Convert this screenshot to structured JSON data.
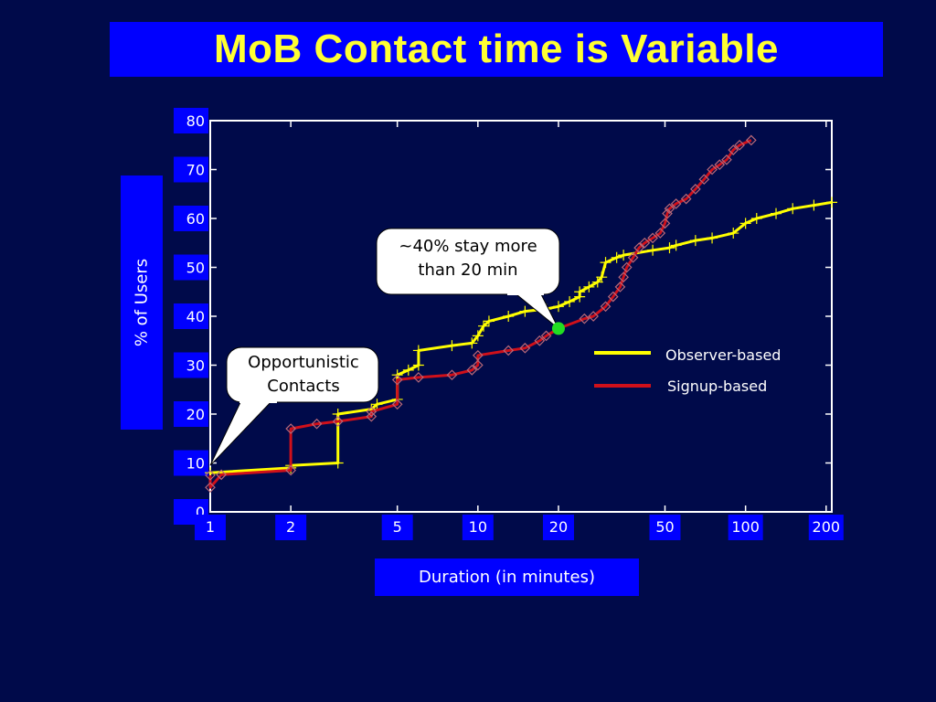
{
  "title": "MoB Contact time is Variable",
  "colors": {
    "background": "#000a4a",
    "title_bar": "#0000ff",
    "title_text": "#ffff33",
    "label_box": "#0000ff",
    "observer": "#ffff00",
    "signup": "#d0101a",
    "marker_green": "#22dd22"
  },
  "callouts": {
    "stay": "~40% stay more\nthan 20 min",
    "opportunistic": "Opportunistic\nContacts"
  },
  "legend": {
    "observer": "Observer-based",
    "signup": "Signup-based"
  },
  "chart_data": {
    "type": "line",
    "xlabel": "Duration (in minutes)",
    "ylabel": "% of Users",
    "xscale": "log",
    "xlim": [
      1,
      210
    ],
    "ylim": [
      0,
      80
    ],
    "x_ticks": [
      "1",
      "2",
      "5",
      "10",
      "20",
      "50",
      "100",
      "200"
    ],
    "y_ticks": [
      "0",
      "10",
      "20",
      "30",
      "40",
      "50",
      "60",
      "70",
      "80"
    ],
    "grid": false,
    "series": [
      {
        "name": "Observer-based",
        "color": "#ffff00",
        "marker": "plus",
        "points": [
          [
            1,
            8
          ],
          [
            2,
            9
          ],
          [
            2,
            9.5
          ],
          [
            3,
            10
          ],
          [
            3,
            20
          ],
          [
            4,
            21
          ],
          [
            4.2,
            22
          ],
          [
            5,
            23
          ],
          [
            5,
            28
          ],
          [
            5.5,
            29
          ],
          [
            6,
            30
          ],
          [
            6,
            33
          ],
          [
            8,
            34
          ],
          [
            9.5,
            34.5
          ],
          [
            10,
            36
          ],
          [
            10.5,
            38
          ],
          [
            11,
            39
          ],
          [
            13,
            40
          ],
          [
            15,
            41
          ],
          [
            18,
            41.5
          ],
          [
            20,
            42
          ],
          [
            22,
            43
          ],
          [
            24,
            44
          ],
          [
            24,
            45
          ],
          [
            26,
            46
          ],
          [
            28,
            47
          ],
          [
            29,
            48
          ],
          [
            30,
            51
          ],
          [
            33,
            52
          ],
          [
            35,
            52.5
          ],
          [
            45,
            53.5
          ],
          [
            52,
            54
          ],
          [
            55,
            54.5
          ],
          [
            65,
            55.5
          ],
          [
            75,
            56
          ],
          [
            90,
            57
          ],
          [
            100,
            59
          ],
          [
            110,
            60
          ],
          [
            130,
            61
          ],
          [
            150,
            62
          ],
          [
            180,
            62.7
          ],
          [
            210,
            63.3
          ]
        ]
      },
      {
        "name": "Signup-based",
        "color": "#d0101a",
        "marker": "diamond",
        "points": [
          [
            1,
            7.5
          ],
          [
            1,
            5
          ],
          [
            1.1,
            7.6
          ],
          [
            2,
            8.5
          ],
          [
            2,
            17
          ],
          [
            2.5,
            18
          ],
          [
            3,
            18.5
          ],
          [
            4,
            19.5
          ],
          [
            4,
            20.5
          ],
          [
            5,
            22
          ],
          [
            5,
            27
          ],
          [
            6,
            27.5
          ],
          [
            8,
            28
          ],
          [
            9.5,
            29
          ],
          [
            10,
            30
          ],
          [
            10,
            32
          ],
          [
            13,
            33
          ],
          [
            15,
            33.5
          ],
          [
            17,
            35
          ],
          [
            18,
            36
          ],
          [
            20,
            37.5
          ],
          [
            25,
            39.5
          ],
          [
            27,
            40
          ],
          [
            30,
            42
          ],
          [
            32,
            44
          ],
          [
            34,
            46
          ],
          [
            35,
            48
          ],
          [
            36,
            50
          ],
          [
            38,
            52
          ],
          [
            40,
            54
          ],
          [
            42,
            55
          ],
          [
            45,
            56
          ],
          [
            48,
            57
          ],
          [
            50,
            59
          ],
          [
            51,
            61
          ],
          [
            52,
            62
          ],
          [
            55,
            63
          ],
          [
            60,
            64
          ],
          [
            65,
            66
          ],
          [
            70,
            68
          ],
          [
            75,
            70
          ],
          [
            80,
            71
          ],
          [
            85,
            72
          ],
          [
            90,
            74
          ],
          [
            95,
            75
          ],
          [
            105,
            76
          ]
        ]
      }
    ],
    "highlight_point": [
      20,
      37.5
    ]
  }
}
